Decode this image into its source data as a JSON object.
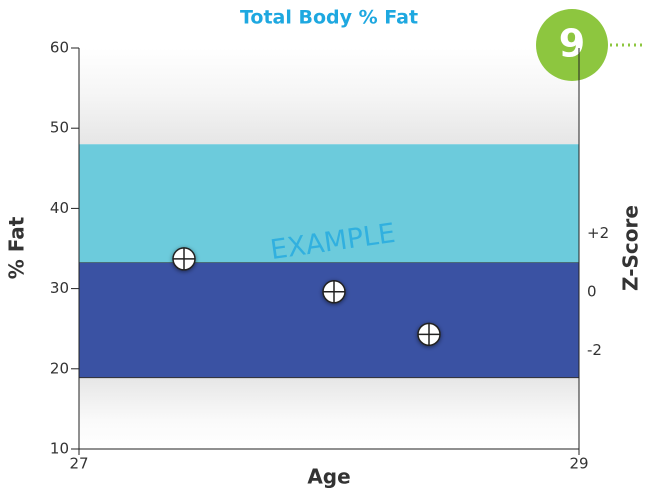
{
  "chart_data": {
    "type": "scatter",
    "title": "Total Body % Fat",
    "badge": "9",
    "x_label": "Age",
    "y_label": "% Fat",
    "y2_label": "Z-Score",
    "annotation": "EXAMPLE",
    "xlim": [
      27,
      29
    ],
    "xticks": [
      27,
      29
    ],
    "ylim": [
      10,
      60
    ],
    "yticks": [
      10,
      20,
      30,
      40,
      50,
      60
    ],
    "y2lim": [
      -5.37,
      8.33
    ],
    "y2ticks": [
      {
        "value": 2,
        "label": "+2"
      },
      0,
      -2
    ],
    "bands": [
      {
        "from": 33.2,
        "to": 48,
        "color": "#6ccbdc"
      },
      {
        "from": 18.9,
        "to": 33.2,
        "color": "#3a52a3"
      }
    ],
    "series": [
      {
        "x": [
          27.42,
          28.02,
          28.4
        ],
        "values": [
          33.7,
          29.6,
          24.3
        ]
      }
    ]
  }
}
